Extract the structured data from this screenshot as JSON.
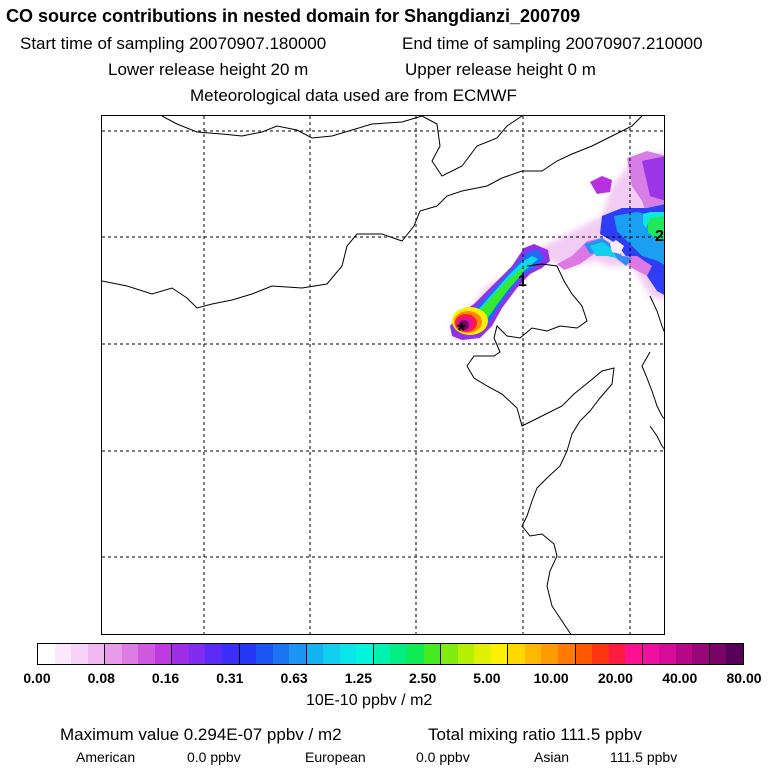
{
  "title": "CO  source contributions in nested domain for Shangdianzi_200709",
  "header": {
    "start": "Start time of sampling 20070907.180000",
    "end": "End time of sampling 20070907.210000",
    "lower": "Lower release height   20 m",
    "upper": "Upper release height    0 m",
    "met": "Meteorological data used are from ECMWF"
  },
  "map": {
    "markers": [
      {
        "label": "1"
      },
      {
        "label": "2"
      }
    ],
    "release_symbol": "*"
  },
  "colorbar": {
    "colors": [
      "#ffffff",
      "#fbe9fb",
      "#f6d2f6",
      "#f0b8f0",
      "#e79be9",
      "#dd7ce3",
      "#cf5ae0",
      "#bf3be0",
      "#9e2ee6",
      "#7f2cf0",
      "#5a2cf6",
      "#3a2ef8",
      "#2536f5",
      "#1c56f2",
      "#1b75f2",
      "#1b94f2",
      "#16b1f0",
      "#12cfee",
      "#0be6ea",
      "#00f5dc",
      "#00f2b0",
      "#00ee82",
      "#10ea55",
      "#45ea22",
      "#80ec10",
      "#b5f000",
      "#dff000",
      "#fff000",
      "#ffd800",
      "#ffb800",
      "#ff9a00",
      "#ff7a00",
      "#ff5800",
      "#ff3410",
      "#ff1a40",
      "#ff1090",
      "#f010a0",
      "#d80c9a",
      "#b8088a",
      "#980678",
      "#780468",
      "#580058"
    ],
    "ticks": [
      "0.00",
      "0.08",
      "0.16",
      "0.31",
      "0.63",
      "1.25",
      "2.50",
      "5.00",
      "10.00",
      "20.00",
      "40.00",
      "80.00"
    ],
    "units": "10E-10 ppbv / m2"
  },
  "summary": {
    "max": "Maximum value  0.294E-07 ppbv / m2",
    "total": "Total mixing ratio      111.5 ppbv"
  },
  "regions": [
    {
      "name": "American",
      "value": "0.0 ppbv"
    },
    {
      "name": "European",
      "value": "0.0 ppbv"
    },
    {
      "name": "Asian",
      "value": "111.5 ppbv"
    }
  ]
}
